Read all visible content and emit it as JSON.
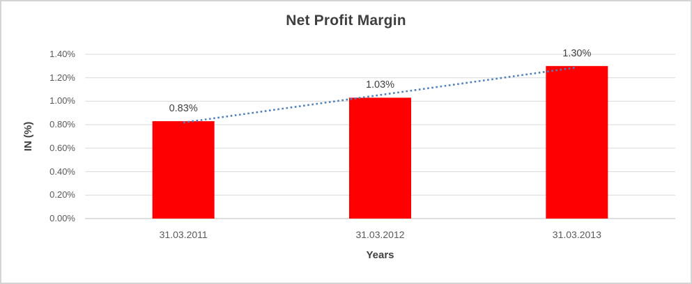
{
  "chart_data": {
    "type": "bar",
    "title": "Net Profit Margin",
    "xlabel": "Years",
    "ylabel": "IN (%)",
    "categories": [
      "31.03.2011",
      "31.03.2012",
      "31.03.2013"
    ],
    "values": [
      0.83,
      1.03,
      1.3
    ],
    "data_labels": [
      "0.83%",
      "1.03%",
      "1.30%"
    ],
    "ylim": [
      0,
      1.4
    ],
    "ytick_step": 0.2,
    "ytick_labels": [
      "0.00%",
      "0.20%",
      "0.40%",
      "0.60%",
      "0.80%",
      "1.00%",
      "1.20%",
      "1.40%"
    ],
    "grid": true,
    "legend": "none",
    "bar_color": "#ff0000",
    "gridline_color": "#d9d9d9",
    "axis_line_color": "#bfbfbf",
    "trendline": {
      "type": "linear",
      "style": "dotted",
      "color": "#4f81bd"
    }
  }
}
